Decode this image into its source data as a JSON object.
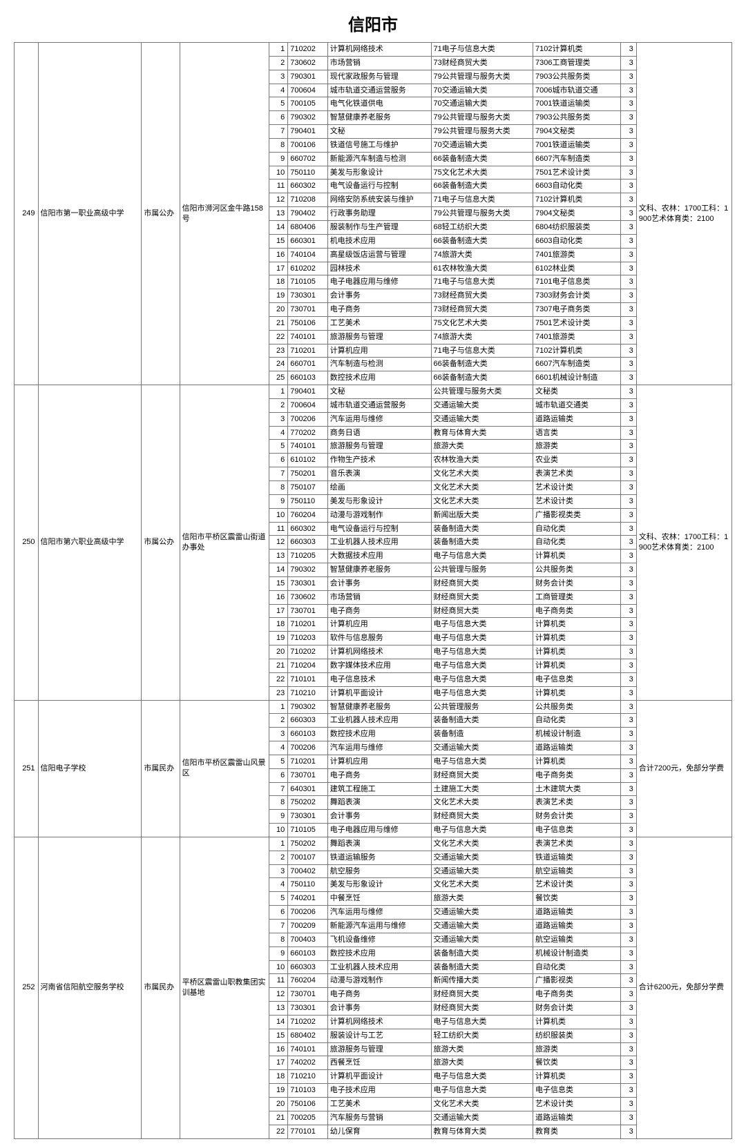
{
  "title": "信阳市",
  "schools": [
    {
      "id": "249",
      "name": "信阳市第一职业高级中学",
      "ownership": "市属公办",
      "address": "信阳市浉河区金牛路158号",
      "note": "文科、农林：1700工科：1900艺术体育类：2100",
      "rows": [
        {
          "n": "1",
          "code": "710202",
          "major": "计算机网络技术",
          "big": "71电子与信息大类",
          "sub": "7102计算机类",
          "y": "3"
        },
        {
          "n": "2",
          "code": "730602",
          "major": "市场营销",
          "big": "73财经商贸大类",
          "sub": "7306工商管理类",
          "y": "3"
        },
        {
          "n": "3",
          "code": "790301",
          "major": "现代家政服务与管理",
          "big": "79公共管理与服务大类",
          "sub": "7903公共服务类",
          "y": "3"
        },
        {
          "n": "4",
          "code": "700604",
          "major": "城市轨道交通运营服务",
          "big": "70交通运输大类",
          "sub": "7006城市轨道交通",
          "y": "3"
        },
        {
          "n": "5",
          "code": "700105",
          "major": "电气化铁道供电",
          "big": "70交通运输大类",
          "sub": "7001铁道运输类",
          "y": "3"
        },
        {
          "n": "6",
          "code": "790302",
          "major": "智慧健康养老服务",
          "big": "79公共管理与服务大类",
          "sub": "7903公共服务类",
          "y": "3"
        },
        {
          "n": "7",
          "code": "790401",
          "major": "文秘",
          "big": "79公共管理与服务大类",
          "sub": "7904文秘类",
          "y": "3"
        },
        {
          "n": "8",
          "code": "700106",
          "major": "铁道信号施工与维护",
          "big": "70交通运输大类",
          "sub": "7001铁道运输类",
          "y": "3"
        },
        {
          "n": "9",
          "code": "660702",
          "major": "新能源汽车制造与检测",
          "big": "66装备制造大类",
          "sub": "6607汽车制造类",
          "y": "3"
        },
        {
          "n": "10",
          "code": "750110",
          "major": "美发与形象设计",
          "big": "75文化艺术大类",
          "sub": "7501艺术设计类",
          "y": "3"
        },
        {
          "n": "11",
          "code": "660302",
          "major": "电气设备运行与控制",
          "big": "66装备制造大类",
          "sub": "6603自动化类",
          "y": "3"
        },
        {
          "n": "12",
          "code": "710208",
          "major": "网络安防系统安装与维护",
          "big": "71电子与信息大类",
          "sub": "7102计算机类",
          "y": "3"
        },
        {
          "n": "13",
          "code": "790402",
          "major": "行政事务助理",
          "big": "79公共管理与服务大类",
          "sub": "7904文秘类",
          "y": "3"
        },
        {
          "n": "14",
          "code": "680406",
          "major": "服装制作与生产管理",
          "big": "68轻工纺织大类",
          "sub": "6804纺织服装类",
          "y": "3"
        },
        {
          "n": "15",
          "code": "660301",
          "major": "机电技术应用",
          "big": "66装备制造大类",
          "sub": "6603自动化类",
          "y": "3"
        },
        {
          "n": "16",
          "code": "740104",
          "major": "高星级饭店运营与管理",
          "big": "74旅游大类",
          "sub": "7401旅游类",
          "y": "3"
        },
        {
          "n": "17",
          "code": "610202",
          "major": "园林技术",
          "big": "61农林牧渔大类",
          "sub": "6102林业类",
          "y": "3"
        },
        {
          "n": "18",
          "code": "710105",
          "major": "电子电器应用与维修",
          "big": "71电子与信息大类",
          "sub": "7101电子信息类",
          "y": "3"
        },
        {
          "n": "19",
          "code": "730301",
          "major": "会计事务",
          "big": "73财经商贸大类",
          "sub": "7303财务会计类",
          "y": "3"
        },
        {
          "n": "20",
          "code": "730701",
          "major": "电子商务",
          "big": "73财经商贸大类",
          "sub": "7307电子商务类",
          "y": "3"
        },
        {
          "n": "21",
          "code": "750106",
          "major": "工艺美术",
          "big": "75文化艺术大类",
          "sub": "7501艺术设计类",
          "y": "3"
        },
        {
          "n": "22",
          "code": "740101",
          "major": "旅游服务与管理",
          "big": "74旅游大类",
          "sub": "7401旅游类",
          "y": "3"
        },
        {
          "n": "23",
          "code": "710201",
          "major": "计算机应用",
          "big": "71电子与信息大类",
          "sub": "7102计算机类",
          "y": "3"
        },
        {
          "n": "24",
          "code": "660701",
          "major": "汽车制造与检测",
          "big": "66装备制造大类",
          "sub": "6607汽车制造类",
          "y": "3"
        },
        {
          "n": "25",
          "code": "660103",
          "major": "数控技术应用",
          "big": "66装备制造大类",
          "sub": "6601机械设计制造",
          "y": "3"
        }
      ]
    },
    {
      "id": "250",
      "name": "信阳市第六职业高级中学",
      "ownership": "市属公办",
      "address": "信阳市平桥区震雷山街道办事处",
      "note": "文科、农林：1700工科：1900艺术体育类：2100",
      "rows": [
        {
          "n": "1",
          "code": "790401",
          "major": "文秘",
          "big": "公共管理与服务大类",
          "sub": "文秘类",
          "y": "3"
        },
        {
          "n": "2",
          "code": "700604",
          "major": "城市轨道交通运营服务",
          "big": "交通运输大类",
          "sub": "城市轨道交通类",
          "y": "3"
        },
        {
          "n": "3",
          "code": "700206",
          "major": "汽车运用与维修",
          "big": "交通运输大类",
          "sub": "道路运输类",
          "y": "3"
        },
        {
          "n": "4",
          "code": "770202",
          "major": "商务日语",
          "big": "教育与体育大类",
          "sub": "语言类",
          "y": "3"
        },
        {
          "n": "5",
          "code": "740101",
          "major": "旅游服务与管理",
          "big": "旅游大类",
          "sub": "旅游类",
          "y": "3"
        },
        {
          "n": "6",
          "code": "610102",
          "major": "作物生产技术",
          "big": "农林牧渔大类",
          "sub": "农业类",
          "y": "3"
        },
        {
          "n": "7",
          "code": "750201",
          "major": "音乐表演",
          "big": "文化艺术大类",
          "sub": "表演艺术类",
          "y": "3"
        },
        {
          "n": "8",
          "code": "750107",
          "major": "绘画",
          "big": "文化艺术大类",
          "sub": "艺术设计类",
          "y": "3"
        },
        {
          "n": "9",
          "code": "750110",
          "major": "美发与形象设计",
          "big": "文化艺术大类",
          "sub": "艺术设计类",
          "y": "3"
        },
        {
          "n": "10",
          "code": "760204",
          "major": "动漫与游戏制作",
          "big": "新闻出版大类",
          "sub": "广播影视类类",
          "y": "3"
        },
        {
          "n": "11",
          "code": "660302",
          "major": "电气设备运行与控制",
          "big": "装备制造大类",
          "sub": "自动化类",
          "y": "3"
        },
        {
          "n": "12",
          "code": "660303",
          "major": "工业机器人技术应用",
          "big": "装备制造大类",
          "sub": "自动化类",
          "y": "3"
        },
        {
          "n": "13",
          "code": "710205",
          "major": "大数据技术应用",
          "big": "电子与信息大类",
          "sub": "计算机类",
          "y": "3"
        },
        {
          "n": "14",
          "code": "790302",
          "major": "智慧健康养老服务",
          "big": "公共管理与服务",
          "sub": "公共服务类",
          "y": "3"
        },
        {
          "n": "15",
          "code": "730301",
          "major": "会计事务",
          "big": "财经商贸大类",
          "sub": "财务会计类",
          "y": "3"
        },
        {
          "n": "16",
          "code": "730602",
          "major": "市场营销",
          "big": "财经商贸大类",
          "sub": "工商管理类",
          "y": "3"
        },
        {
          "n": "17",
          "code": "730701",
          "major": "电子商务",
          "big": "财经商贸大类",
          "sub": "电子商务类",
          "y": "3"
        },
        {
          "n": "18",
          "code": "710201",
          "major": "计算机应用",
          "big": "电子与信息大类",
          "sub": "计算机类",
          "y": "3"
        },
        {
          "n": "19",
          "code": "710203",
          "major": "软件与信息服务",
          "big": "电子与信息大类",
          "sub": "计算机类",
          "y": "3"
        },
        {
          "n": "20",
          "code": "710202",
          "major": "计算机网络技术",
          "big": "电子与信息大类",
          "sub": "计算机类",
          "y": "3"
        },
        {
          "n": "21",
          "code": "710204",
          "major": "数字媒体技术应用",
          "big": "电子与信息大类",
          "sub": "计算机类",
          "y": "3"
        },
        {
          "n": "22",
          "code": "710101",
          "major": "电子信息技术",
          "big": "电子与信息大类",
          "sub": "电子信息类",
          "y": "3"
        },
        {
          "n": "23",
          "code": "710210",
          "major": "计算机平面设计",
          "big": "电子与信息大类",
          "sub": "计算机类",
          "y": "3"
        }
      ]
    },
    {
      "id": "251",
      "name": "信阳电子学校",
      "ownership": "市属民办",
      "address": "信阳市平桥区震雷山风景区",
      "note": "合计7200元，免部分学费",
      "rows": [
        {
          "n": "1",
          "code": "790302",
          "major": "智慧健康养老服务",
          "big": "公共管理服务",
          "sub": "公共服务类",
          "y": "3"
        },
        {
          "n": "2",
          "code": "660303",
          "major": "工业机器人技术应用",
          "big": "装备制造大类",
          "sub": "自动化类",
          "y": "3"
        },
        {
          "n": "3",
          "code": "660103",
          "major": "数控技术应用",
          "big": "装备制造",
          "sub": "机械设计制造",
          "y": "3"
        },
        {
          "n": "4",
          "code": "700206",
          "major": "汽车运用与维修",
          "big": "交通运输大类",
          "sub": "道路运输类",
          "y": "3"
        },
        {
          "n": "5",
          "code": "710201",
          "major": "计算机应用",
          "big": "电子与信息大类",
          "sub": "计算机类",
          "y": "3"
        },
        {
          "n": "6",
          "code": "730701",
          "major": "电子商务",
          "big": "财经商贸大类",
          "sub": "电子商务类",
          "y": "3"
        },
        {
          "n": "7",
          "code": "640301",
          "major": "建筑工程施工",
          "big": "土建施工大类",
          "sub": "土木建筑大类",
          "y": "3"
        },
        {
          "n": "8",
          "code": "750202",
          "major": "舞蹈表演",
          "big": "文化艺术大类",
          "sub": "表演艺术类",
          "y": "3"
        },
        {
          "n": "9",
          "code": "730301",
          "major": "会计事务",
          "big": "财经商贸大类",
          "sub": "财务会计类",
          "y": "3"
        },
        {
          "n": "10",
          "code": "710105",
          "major": "电子电器应用与维修",
          "big": "电子与信息大类",
          "sub": "电子信息类",
          "y": "3"
        }
      ]
    },
    {
      "id": "252",
      "name": "河南省信阳航空服务学校",
      "ownership": "市属民办",
      "address": "平桥区震雷山职教集团实训基地",
      "note": "合计6200元，免部分学费",
      "rows": [
        {
          "n": "1",
          "code": "750202",
          "major": "舞蹈表演",
          "big": "文化艺术大类",
          "sub": "表演艺术类",
          "y": "3"
        },
        {
          "n": "2",
          "code": "700107",
          "major": "铁道运输服务",
          "big": "交通运输大类",
          "sub": "铁道运输类",
          "y": "3"
        },
        {
          "n": "3",
          "code": "700402",
          "major": "航空服务",
          "big": "交通运输大类",
          "sub": "航空运输类",
          "y": "3"
        },
        {
          "n": "4",
          "code": "750110",
          "major": "美发与形象设计",
          "big": "文化艺术大类",
          "sub": "艺术设计类",
          "y": "3"
        },
        {
          "n": "5",
          "code": "740201",
          "major": "中餐烹饪",
          "big": "旅游大类",
          "sub": "餐饮类",
          "y": "3"
        },
        {
          "n": "6",
          "code": "700206",
          "major": "汽车运用与维修",
          "big": "交通运输大类",
          "sub": "道路运输类",
          "y": "3"
        },
        {
          "n": "7",
          "code": "700209",
          "major": "新能源汽车运用与维修",
          "big": "交通运输大类",
          "sub": "道路运输类",
          "y": "3"
        },
        {
          "n": "8",
          "code": "700403",
          "major": "飞机设备维修",
          "big": "交通运输大类",
          "sub": "航空运输类",
          "y": "3"
        },
        {
          "n": "9",
          "code": "660103",
          "major": "数控技术应用",
          "big": "装备制造大类",
          "sub": "机械设计制造类",
          "y": "3"
        },
        {
          "n": "10",
          "code": "660303",
          "major": "工业机器人技术应用",
          "big": "装备制造大类",
          "sub": "自动化类",
          "y": "3"
        },
        {
          "n": "11",
          "code": "760204",
          "major": "动漫与游戏制作",
          "big": "新闻传播大类",
          "sub": "广播影视类",
          "y": "3"
        },
        {
          "n": "12",
          "code": "730701",
          "major": "电子商务",
          "big": "财经商贸大类",
          "sub": "电子商务类",
          "y": "3"
        },
        {
          "n": "13",
          "code": "730301",
          "major": "会计事务",
          "big": "财经商贸大类",
          "sub": "财务会计类",
          "y": "3"
        },
        {
          "n": "14",
          "code": "710202",
          "major": "计算机网络技术",
          "big": "电子与信息大类",
          "sub": "计算机类",
          "y": "3"
        },
        {
          "n": "15",
          "code": "680402",
          "major": "服装设计与工艺",
          "big": "轻工纺织大类",
          "sub": "纺织服装类",
          "y": "3"
        },
        {
          "n": "16",
          "code": "740101",
          "major": "旅游服务与管理",
          "big": "旅游大类",
          "sub": "旅游类",
          "y": "3"
        },
        {
          "n": "17",
          "code": "740202",
          "major": "西餐烹饪",
          "big": "旅游大类",
          "sub": "餐饮类",
          "y": "3"
        },
        {
          "n": "18",
          "code": "710210",
          "major": "计算机平面设计",
          "big": "电子与信息大类",
          "sub": "计算机类",
          "y": "3"
        },
        {
          "n": "19",
          "code": "710103",
          "major": "电子技术应用",
          "big": "电子与信息大类",
          "sub": "电子信息类",
          "y": "3"
        },
        {
          "n": "20",
          "code": "750106",
          "major": "工艺美术",
          "big": "文化艺术大类",
          "sub": "艺术设计类",
          "y": "3"
        },
        {
          "n": "21",
          "code": "700205",
          "major": "汽车服务与营销",
          "big": "交通运输大类",
          "sub": "道路运输类",
          "y": "3"
        },
        {
          "n": "22",
          "code": "770101",
          "major": "幼儿保育",
          "big": "教育与体育大类",
          "sub": "教育类",
          "y": "3"
        }
      ]
    }
  ]
}
